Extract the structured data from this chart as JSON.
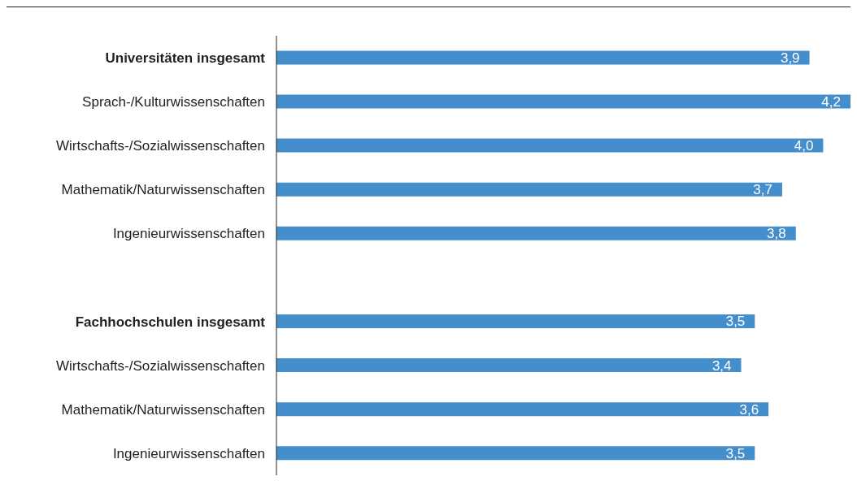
{
  "chart_data": {
    "type": "bar",
    "orientation": "horizontal",
    "categories": [
      "Universitäten insgesamt",
      "Sprach-/Kulturwissenschaften",
      "Wirtschafts-/Sozialwissenschaften",
      "Mathematik/Naturwissenschaften",
      "Ingenieurwissenschaften",
      null,
      "Fachhochschulen insgesamt",
      "Wirtschafts-/Sozialwissenschaften",
      "Mathematik/Naturwissenschaften",
      "Ingenieurwissenschaften"
    ],
    "values": [
      3.9,
      4.2,
      4.0,
      3.7,
      3.8,
      null,
      3.5,
      3.4,
      3.6,
      3.5
    ],
    "value_labels": [
      "3,9",
      "4,2",
      "4,0",
      "3,7",
      "3,8",
      null,
      "3,5",
      "3,4",
      "3,6",
      "3,5"
    ],
    "color": "#448ecb",
    "grid": false,
    "legend": false
  }
}
